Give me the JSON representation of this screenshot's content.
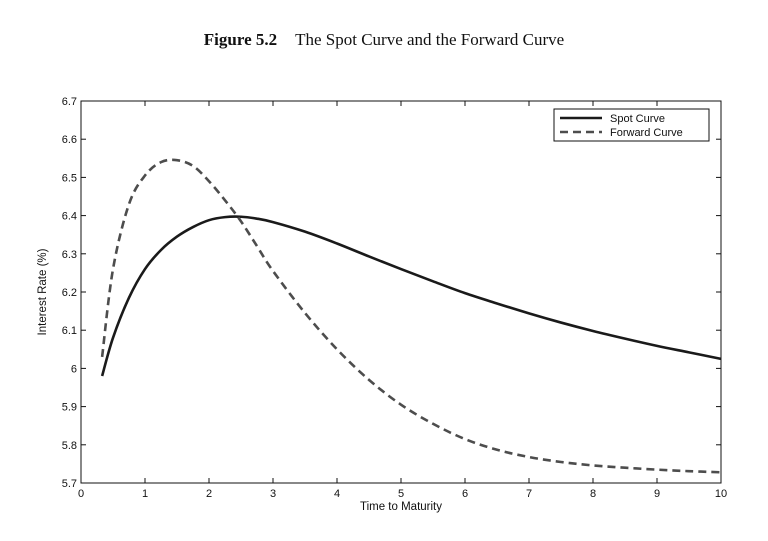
{
  "figure": {
    "label": "Figure 5.2",
    "title": "The Spot Curve and the Forward Curve"
  },
  "chart_data": {
    "type": "line",
    "title": "The Spot Curve and the Forward Curve",
    "xlabel": "Time to Maturity",
    "ylabel": "Interest Rate (%)",
    "xlim": [
      0,
      10
    ],
    "ylim": [
      5.7,
      6.7
    ],
    "xticks": [
      0,
      1,
      2,
      3,
      4,
      5,
      6,
      7,
      8,
      9,
      10
    ],
    "yticks": [
      5.7,
      5.8,
      5.9,
      6.0,
      6.1,
      6.2,
      6.3,
      6.4,
      6.5,
      6.6,
      6.7
    ],
    "ytick_labels": [
      "5.7",
      "5.8",
      "5.9",
      "6",
      "6.1",
      "6.2",
      "6.3",
      "6.4",
      "6.5",
      "6.6",
      "6.7"
    ],
    "legend_position": "top-right",
    "grid": false,
    "series": [
      {
        "name": "Spot Curve",
        "style": "solid",
        "color": "#1a1a1a",
        "x": [
          0.33,
          0.5,
          0.75,
          1.0,
          1.25,
          1.5,
          1.75,
          2.0,
          2.25,
          2.5,
          2.75,
          3.0,
          3.5,
          4.0,
          4.5,
          5.0,
          5.5,
          6.0,
          6.5,
          7.0,
          7.5,
          8.0,
          8.5,
          9.0,
          9.5,
          10.0
        ],
        "y": [
          5.98,
          6.08,
          6.185,
          6.26,
          6.31,
          6.345,
          6.37,
          6.388,
          6.396,
          6.397,
          6.392,
          6.383,
          6.358,
          6.327,
          6.293,
          6.26,
          6.228,
          6.197,
          6.17,
          6.144,
          6.12,
          6.098,
          6.078,
          6.059,
          6.042,
          6.025
        ]
      },
      {
        "name": "Forward Curve",
        "style": "dashed",
        "color": "#4d4d4d",
        "x": [
          0.33,
          0.5,
          0.75,
          1.0,
          1.25,
          1.5,
          1.75,
          2.0,
          2.25,
          2.5,
          2.75,
          3.0,
          3.5,
          4.0,
          4.5,
          5.0,
          5.5,
          6.0,
          6.5,
          7.0,
          7.5,
          8.0,
          8.5,
          9.0,
          9.5,
          10.0
        ],
        "y": [
          6.03,
          6.26,
          6.43,
          6.505,
          6.54,
          6.545,
          6.53,
          6.49,
          6.44,
          6.385,
          6.32,
          6.255,
          6.145,
          6.05,
          5.97,
          5.905,
          5.855,
          5.815,
          5.787,
          5.768,
          5.755,
          5.746,
          5.74,
          5.735,
          5.731,
          5.728
        ]
      }
    ]
  }
}
